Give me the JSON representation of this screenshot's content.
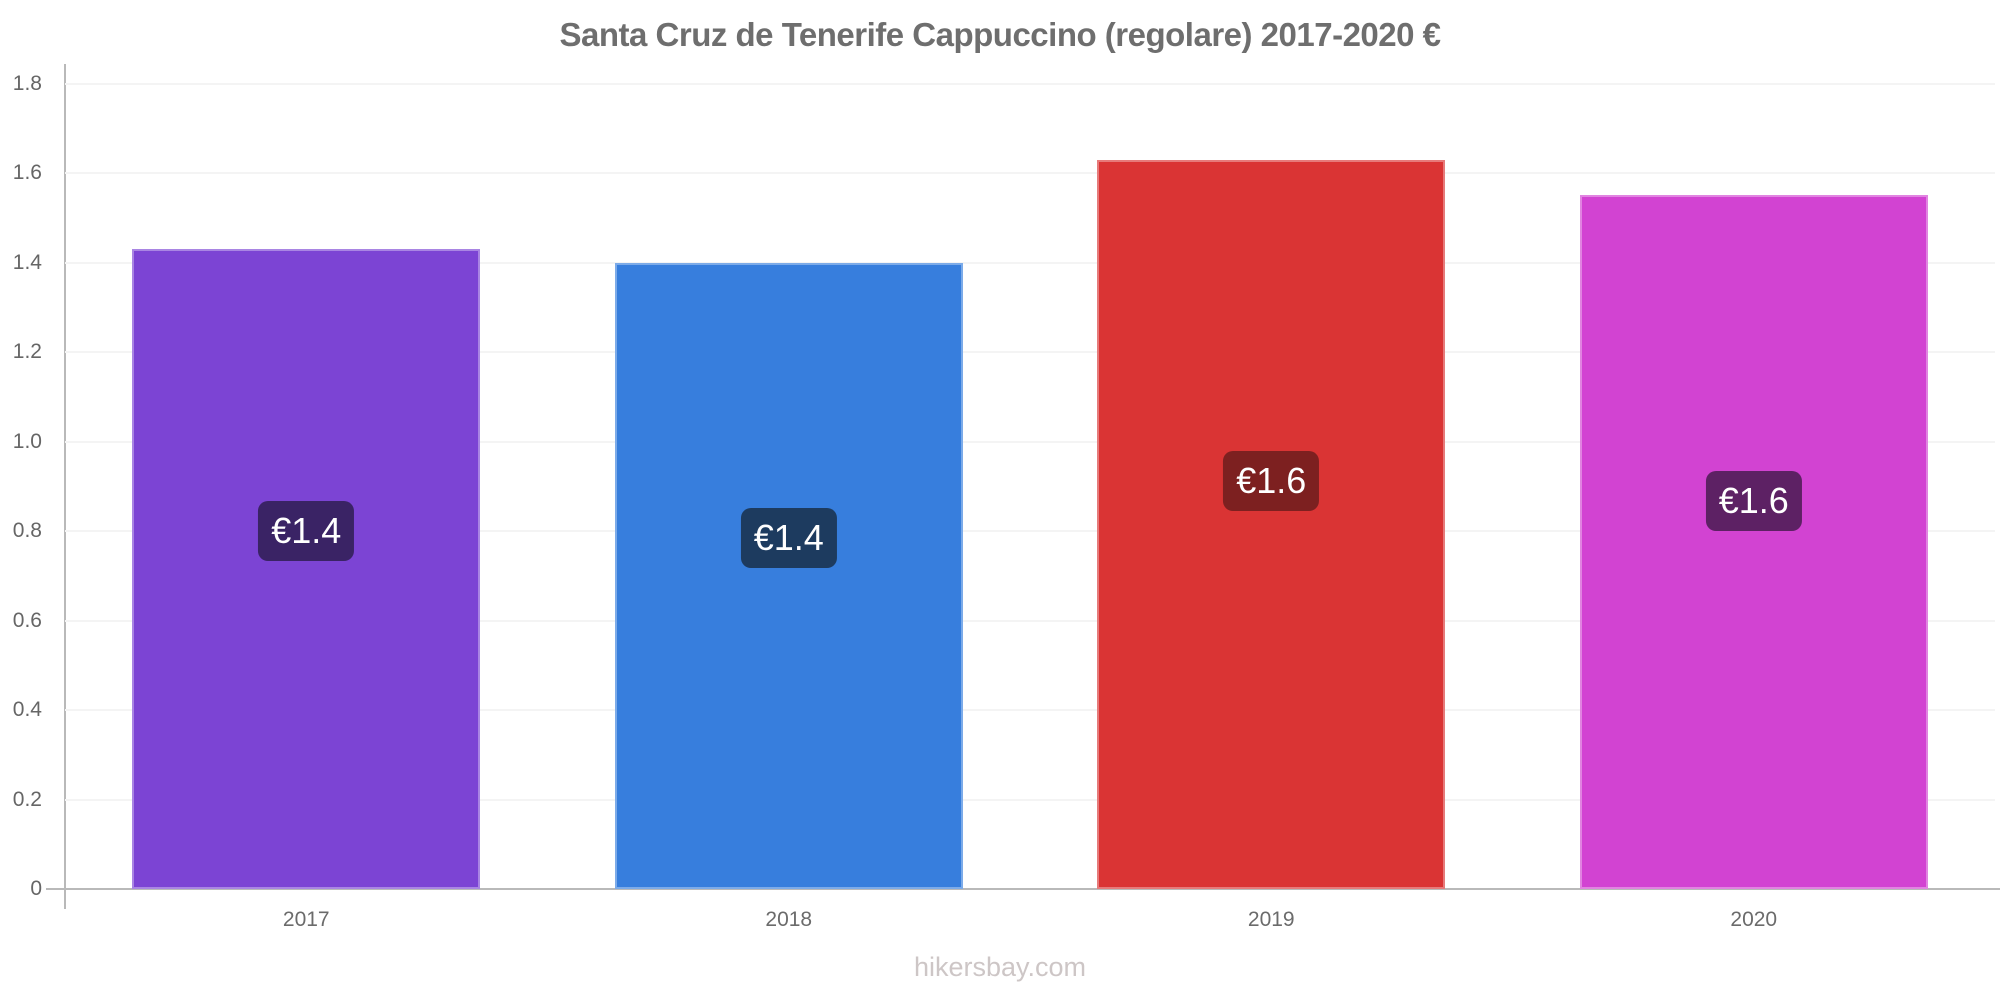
{
  "title": "Santa Cruz de Tenerife Cappuccino (regolare) 2017-2020 €",
  "footer": "hikersbay.com",
  "chart_data": {
    "type": "bar",
    "title": "Santa Cruz de Tenerife Cappuccino (regolare) 2017-2020 €",
    "categories": [
      "2017",
      "2018",
      "2019",
      "2020"
    ],
    "values": [
      1.43,
      1.4,
      1.63,
      1.55
    ],
    "value_labels": [
      "€1.4",
      "€1.4",
      "€1.6",
      "€1.6"
    ],
    "bar_colors": [
      "#7c44d4",
      "#377edd",
      "#da3434",
      "#d243d2"
    ],
    "badge_colors": [
      "#3a2365",
      "#1d3b5f",
      "#7d2020",
      "#5d2164"
    ],
    "xlabel": "",
    "ylabel": "",
    "ylim": [
      0,
      1.8
    ],
    "ytick_step": 0.2,
    "yticks": [
      "0",
      "0.2",
      "0.4",
      "0.6",
      "0.8",
      "1.0",
      "1.2",
      "1.4",
      "1.6",
      "1.8"
    ],
    "grid": true,
    "legend": "none",
    "currency": "€"
  },
  "colors": {
    "background": "#ffffff",
    "title": "#6e6e6e",
    "axis": "#b9b9b9",
    "gridline": "#f4f4f4",
    "tick_label": "#666666",
    "badge_text": "#ffffff",
    "footer": "#cdc6c6"
  }
}
